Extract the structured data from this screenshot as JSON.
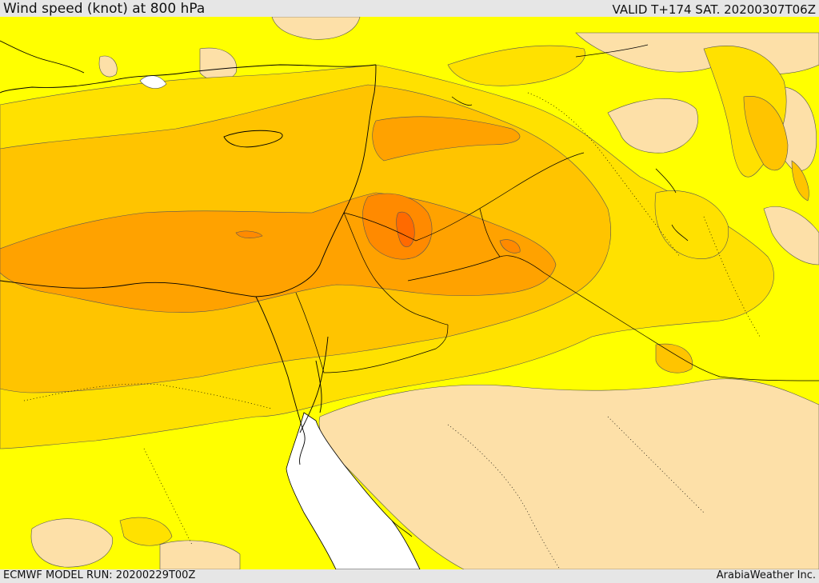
{
  "header": {
    "title": "Wind speed (knot) at 800 hPa",
    "valid": "VALID T+174 SAT. 20200307T06Z"
  },
  "footer": {
    "run": "ECMWF MODEL RUN: 20200229T00Z",
    "credit": "ArabiaWeather Inc."
  },
  "colors": {
    "band_calm": "#fde0a8",
    "band_light": "#ffff00",
    "band_moderate": "#ffe100",
    "band_fresh": "#ffc400",
    "band_strong": "#ffa200",
    "band_gale": "#ff8a00",
    "band_max": "#ff6a00",
    "sea_low": "#ffffff",
    "coastline": "#000000"
  }
}
